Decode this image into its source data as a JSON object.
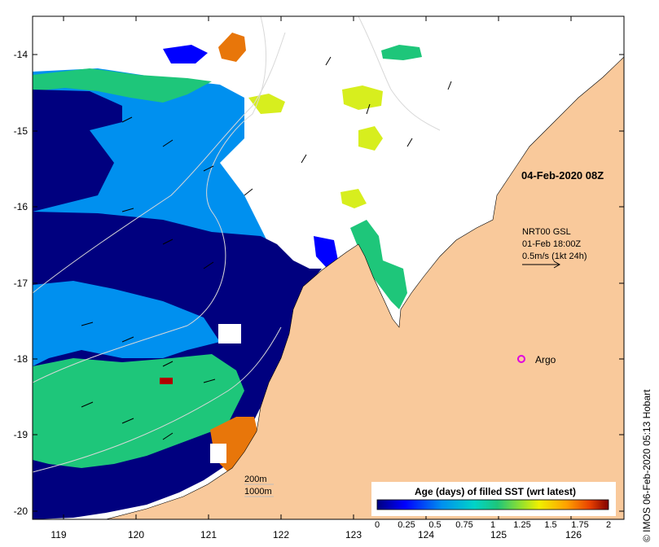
{
  "map": {
    "x_ticks": [
      "119",
      "120",
      "121",
      "122",
      "123",
      "124",
      "125",
      "126"
    ],
    "y_ticks": [
      "-14",
      "-15",
      "-16",
      "-17",
      "-18",
      "-19",
      "-20"
    ],
    "date_label": "04-Feb-2020 08Z",
    "wind": {
      "line1": "NRT00 GSL",
      "line2": "01-Feb 18:00Z",
      "line3": "0.5m/s (1kt 24h)"
    },
    "argo_label": "Argo",
    "bathy_labels": [
      "200m",
      "1000m"
    ],
    "credit": "© IMOS 06-Feb-2020 05:13 Hobart",
    "colorbar": {
      "title": "Age (days) of filled SST (wrt latest)",
      "ticks": [
        "0",
        "0.25",
        "0.5",
        "0.75",
        "1",
        "1.25",
        "1.5",
        "1.75",
        "2"
      ]
    },
    "colors": {
      "land": "#f9c99b",
      "no_data": "#ffffff",
      "age_0": "#00007f",
      "age_0_5": "#0090ef",
      "age_1": "#1ec67a",
      "age_1_25": "#d7ee1e",
      "age_1_75": "#e8760a",
      "argo": "#e000e0"
    }
  }
}
